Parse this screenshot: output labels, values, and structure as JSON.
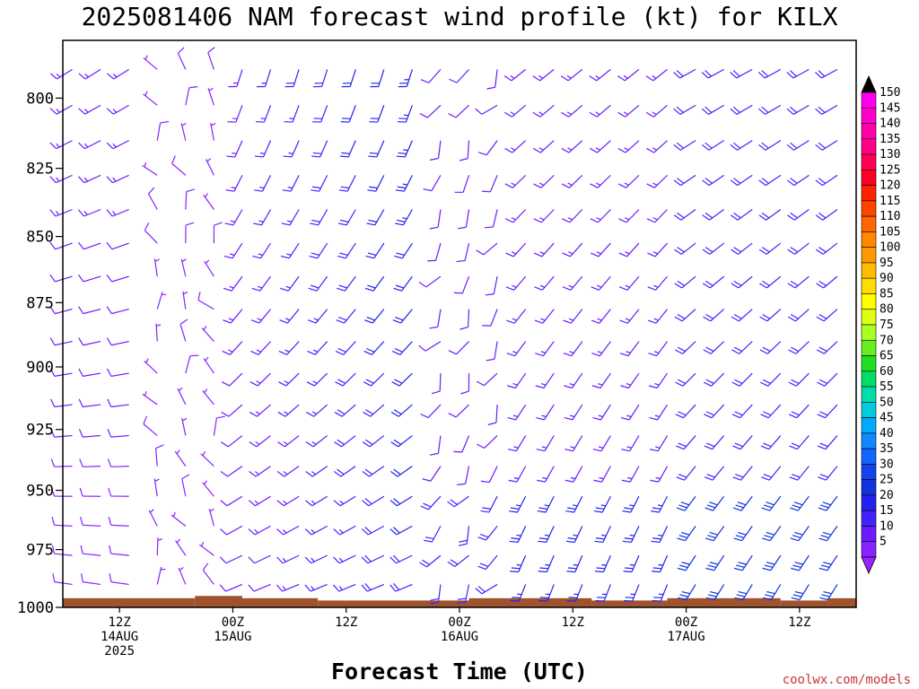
{
  "chart_data": {
    "type": "wind_barb_time_height",
    "title": "2025081406 NAM forecast wind profile (kt) for KILX",
    "xlabel": "Forecast Time (UTC)",
    "ylabel": "",
    "credit": "coolwx.com/models",
    "y_axis": {
      "unit": "hPa",
      "inverted": true,
      "ylim": [
        1000,
        780
      ],
      "ticks": [
        800,
        825,
        850,
        875,
        900,
        925,
        950,
        975,
        1000
      ]
    },
    "x_axis": {
      "xlim_hours": [
        0,
        84
      ],
      "tick_labels": [
        {
          "hour": 6,
          "line1": "12Z",
          "line2": "14AUG",
          "line3": "2025"
        },
        {
          "hour": 18,
          "line1": "00Z",
          "line2": "15AUG",
          "line3": ""
        },
        {
          "hour": 30,
          "line1": "12Z",
          "line2": "",
          "line3": ""
        },
        {
          "hour": 42,
          "line1": "00Z",
          "line2": "16AUG",
          "line3": ""
        },
        {
          "hour": 54,
          "line1": "12Z",
          "line2": "",
          "line3": ""
        },
        {
          "hour": 66,
          "line1": "00Z",
          "line2": "17AUG",
          "line3": ""
        },
        {
          "hour": 78,
          "line1": "12Z",
          "line2": "",
          "line3": ""
        }
      ]
    },
    "legend": {
      "placement": "right",
      "unit": "kt",
      "levels": [
        5,
        10,
        15,
        20,
        25,
        30,
        35,
        40,
        45,
        50,
        55,
        60,
        65,
        70,
        75,
        80,
        85,
        90,
        95,
        100,
        105,
        110,
        115,
        120,
        125,
        130,
        135,
        140,
        145,
        150
      ],
      "colors": [
        "#8822ff",
        "#6a1bff",
        "#4422ff",
        "#2222ee",
        "#1133dd",
        "#1144ee",
        "#1166ff",
        "#1188ff",
        "#00aaff",
        "#00ccdd",
        "#00ddaa",
        "#00dd66",
        "#22dd22",
        "#66ee22",
        "#aaff22",
        "#ddff11",
        "#ffff00",
        "#ffdd00",
        "#ffbb00",
        "#ff9900",
        "#ff8800",
        "#ff6600",
        "#ff4400",
        "#ff2200",
        "#ff0022",
        "#ff0055",
        "#ff0088",
        "#ff00aa",
        "#ff00cc",
        "#ff00ee"
      ],
      "low_cap_color": "#9922ff",
      "high_cap_color": "#000000"
    },
    "surface_fill_color": "#a0522d",
    "surface_pressure_hpa_by_segment": [
      {
        "hour_start": 0,
        "hour_end": 14,
        "p": 996
      },
      {
        "hour_start": 14,
        "hour_end": 19,
        "p": 995
      },
      {
        "hour_start": 19,
        "hour_end": 27,
        "p": 996
      },
      {
        "hour_start": 27,
        "hour_end": 43,
        "p": 997
      },
      {
        "hour_start": 43,
        "hour_end": 56,
        "p": 996
      },
      {
        "hour_start": 56,
        "hour_end": 64,
        "p": 997
      },
      {
        "hour_start": 64,
        "hour_end": 76,
        "p": 996
      },
      {
        "hour_start": 76,
        "hour_end": 81,
        "p": 997
      },
      {
        "hour_start": 81,
        "hour_end": 84,
        "p": 996
      }
    ]
  }
}
